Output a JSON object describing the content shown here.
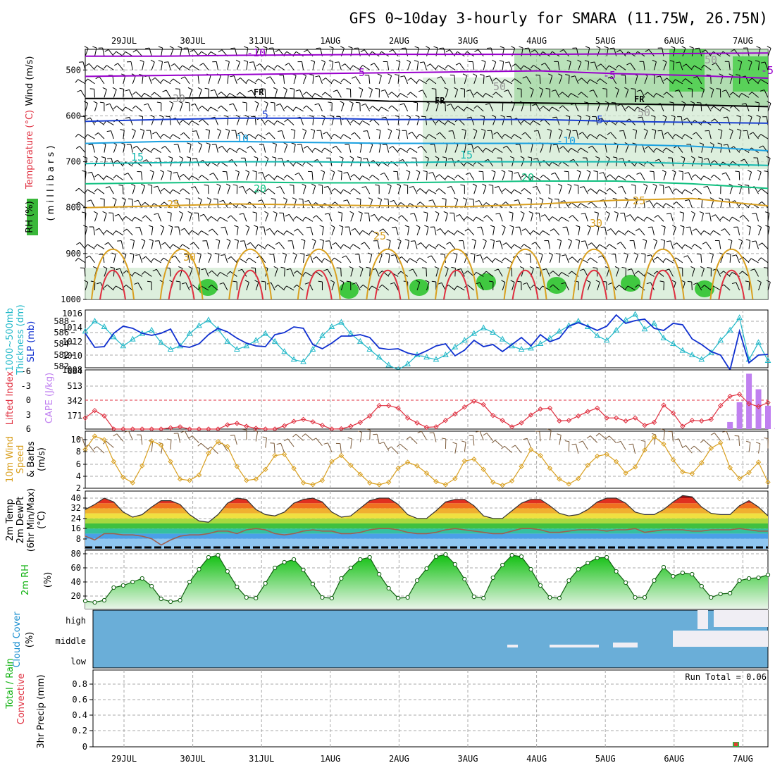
{
  "title": "GFS 0~10day 3-hourly for SMARA (11.75W, 26.75N)",
  "dates": [
    "29JUL",
    "30JUL",
    "31JUL",
    "1AUG",
    "2AUG",
    "3AUG",
    "4AUG",
    "5AUG",
    "6AUG",
    "7AUG"
  ],
  "colors": {
    "purple": "#9900cc",
    "blue": "#1a3fd1",
    "lightblue": "#1aa0e0",
    "teal": "#12b9b0",
    "green": "#10c080",
    "orange": "#d9a020",
    "red": "#e03040",
    "cyan": "#20b8c8",
    "slp": "#1030d0",
    "rh": "#12b212"
  },
  "panels": {
    "upper": {
      "labels": [
        "Wind (m/s)",
        "Temperature (°C)",
        "RH (%)",
        "( m i l l i b a r s )"
      ],
      "ticks": [
        "500",
        "600",
        "700",
        "800",
        "900",
        "1000"
      ],
      "contour_labels": [
        "-10",
        "-5",
        "-5",
        "FR",
        "FR",
        "FR",
        "-5",
        "5",
        "-5",
        "10",
        "-10",
        "15",
        "15",
        "20",
        "20",
        "25",
        "25",
        "25",
        "30",
        "30",
        "50",
        "50",
        "50",
        "30"
      ],
      "lines": [
        {
          "name": "-10",
          "color": "purple",
          "p": [
            470,
            470,
            468,
            467,
            466,
            466,
            466,
            465,
            464,
            463
          ]
        },
        {
          "name": "-5",
          "color": "purple",
          "p": [
            514,
            512,
            510,
            508,
            506,
            504,
            502,
            508,
            512,
            518
          ]
        },
        {
          "name": "FR",
          "color": "black",
          "p": [
            562,
            562,
            560,
            562,
            568,
            570,
            572,
            574,
            576,
            580
          ]
        },
        {
          "name": "5",
          "color": "blue",
          "p": [
            612,
            608,
            605,
            605,
            608,
            608,
            608,
            612,
            614,
            616
          ]
        },
        {
          "name": "10",
          "color": "lightblue",
          "p": [
            660,
            656,
            656,
            658,
            660,
            660,
            660,
            662,
            666,
            676
          ]
        },
        {
          "name": "15",
          "color": "teal",
          "p": [
            704,
            702,
            700,
            700,
            702,
            700,
            700,
            700,
            704,
            708
          ]
        },
        {
          "name": "20",
          "color": "green",
          "p": [
            748,
            746,
            744,
            746,
            746,
            744,
            742,
            742,
            748,
            758
          ]
        },
        {
          "name": "25",
          "color": "orange",
          "p": [
            800,
            796,
            792,
            794,
            796,
            798,
            792,
            784,
            780,
            796
          ]
        }
      ]
    },
    "slp": {
      "labels": [
        "1000~500mb",
        "Thickness (dm)",
        "SLP (mb)"
      ],
      "left_ticks": [
        "588",
        "586",
        "584",
        "582"
      ],
      "right_ticks": [
        "1016",
        "1014",
        "1012",
        "1010",
        "1008"
      ],
      "thickness": [
        587.1,
        588.0,
        587.5,
        586.6,
        585.8,
        586.4,
        586.9,
        587.2,
        586.1,
        585.5,
        585.8,
        586.9,
        587.6,
        588.1,
        587.3,
        586.2,
        585.5,
        585.8,
        586.3,
        586.9,
        586.2,
        585.3,
        584.6,
        584.4,
        585.5,
        586.7,
        587.5,
        587.9,
        586.9,
        586.2,
        585.5,
        584.8,
        584.1,
        583.7,
        584.2,
        585.0,
        584.8,
        584.6,
        585.0,
        585.7,
        586.3,
        586.9,
        587.4,
        587.0,
        586.4,
        585.8,
        585.5,
        585.6,
        586.0,
        586.5,
        587.1,
        587.6,
        588.0,
        587.5,
        586.7,
        586.3,
        587.2,
        588.1,
        588.6,
        587.3,
        587.8,
        586.5,
        586.0,
        585.4,
        585.0,
        584.6,
        585.2,
        586.3,
        587.2,
        588.3,
        584.6,
        586.1,
        584.5
      ],
      "pressure": [
        1012.8,
        1010.8,
        1010.9,
        1012.8,
        1013.8,
        1013.5,
        1012.8,
        1012.5,
        1012.8,
        1013.4,
        1011.0,
        1010.8,
        1011.3,
        1012.6,
        1013.5,
        1013.0,
        1012.1,
        1011.4,
        1011.0,
        1010.9,
        1012.6,
        1012.9,
        1013.7,
        1013.5,
        1011.2,
        1010.6,
        1011.4,
        1012.4,
        1012.4,
        1012.6,
        1012.2,
        1010.7,
        1010.5,
        1010.6,
        1010.0,
        1009.7,
        1010.3,
        1011.0,
        1011.3,
        1009.6,
        1010.4,
        1011.8,
        1010.9,
        1011.2,
        1010.2,
        1011.2,
        1012.2,
        1011.0,
        1012.6,
        1011.6,
        1012.1,
        1013.8,
        1014.3,
        1013.8,
        1013.2,
        1013.8,
        1015.4,
        1014.2,
        1014.6,
        1014.8,
        1013.5,
        1013.2,
        1014.2,
        1014.0,
        1012.0,
        1011.2,
        1010.2,
        1009.7,
        1007.6,
        1013.1,
        1008.6,
        1009.7,
        1009.8
      ]
    },
    "cape": {
      "labels": [
        "Lifted Index",
        "CAPE (J/kg)"
      ],
      "li_ticks": [
        "-6",
        "-3",
        "0",
        "3",
        "6"
      ],
      "cape_ticks": [
        "684",
        "513",
        "342",
        "171"
      ],
      "lifted_index": [
        3.6,
        2.1,
        3.2,
        6.2,
        6.8,
        6.8,
        7.1,
        6.9,
        6.1,
        5.6,
        5.4,
        5.9,
        6.0,
        6.3,
        6.0,
        5.0,
        4.7,
        5.3,
        5.7,
        6.0,
        6.0,
        5.2,
        4.3,
        3.9,
        4.4,
        5.1,
        5.9,
        5.8,
        5.3,
        4.5,
        3.2,
        1.1,
        1.1,
        1.6,
        3.6,
        4.6,
        5.5,
        5.4,
        4.1,
        2.8,
        1.4,
        0.2,
        0.9,
        3.1,
        4.1,
        5.4,
        4.6,
        3.0,
        1.8,
        1.6,
        4.2,
        4.1,
        3.2,
        2.3,
        1.6,
        3.6,
        3.6,
        4.2,
        3.6,
        5.1,
        4.5,
        1.0,
        2.6,
        5.3,
        4.1,
        4.2,
        3.9,
        1.1,
        -0.8,
        -1.2,
        0.7,
        1.3,
        0.5
      ],
      "cape_values": [
        0,
        0,
        0,
        0,
        0,
        0,
        0,
        0,
        0,
        0,
        0,
        0,
        0,
        0,
        0,
        0,
        0,
        0,
        0,
        0,
        0,
        0,
        0,
        0,
        0,
        0,
        0,
        0,
        0,
        0,
        0,
        0,
        0,
        0,
        0,
        0,
        0,
        0,
        0,
        0,
        0,
        0,
        0,
        0,
        0,
        0,
        0,
        0,
        0,
        0,
        0,
        0,
        0,
        0,
        0,
        0,
        0,
        0,
        0,
        0,
        0,
        0,
        0,
        0,
        0,
        0,
        0,
        0,
        82,
        310,
        640,
        460,
        270,
        12,
        0
      ]
    },
    "wind10": {
      "labels": [
        "10m Wind",
        "Speed",
        "& Barbs",
        "(m/s)"
      ],
      "ticks": [
        "10",
        "8",
        "6",
        "4",
        "2"
      ],
      "speed": [
        8.4,
        10.6,
        10.0,
        6.4,
        3.8,
        2.9,
        5.7,
        9.8,
        9.1,
        6.4,
        3.5,
        3.3,
        4.2,
        7.8,
        9.7,
        8.9,
        5.6,
        3.3,
        3.5,
        5.1,
        7.4,
        7.6,
        5.3,
        2.9,
        2.6,
        3.3,
        6.4,
        7.4,
        5.8,
        4.3,
        2.9,
        2.6,
        3.0,
        5.3,
        6.3,
        5.7,
        4.5,
        3.1,
        2.6,
        3.6,
        6.5,
        6.8,
        5.1,
        3.0,
        2.5,
        3.2,
        5.6,
        8.4,
        7.4,
        5.3,
        3.5,
        2.7,
        3.6,
        5.8,
        7.3,
        7.6,
        6.4,
        4.5,
        5.5,
        8.3,
        10.5,
        9.3,
        6.7,
        4.7,
        4.4,
        6.2,
        8.6,
        9.5,
        5.4,
        3.6,
        4.6,
        6.3,
        3.0
      ]
    },
    "temp": {
      "labels": [
        "2m Temp",
        "2m DewPt",
        "(6hr Min/Max)",
        "(°C)"
      ],
      "ticks": [
        "40",
        "32",
        "24",
        "16",
        "8"
      ],
      "temperature": [
        31,
        35,
        40,
        37,
        29,
        25,
        27,
        33,
        38,
        38,
        35,
        27,
        22,
        21,
        27,
        36,
        40,
        39,
        31,
        27,
        26,
        29,
        36,
        39,
        40,
        37,
        29,
        25,
        26,
        32,
        38,
        40,
        40,
        35,
        27,
        24,
        24,
        30,
        37,
        39,
        39,
        34,
        26,
        24,
        24,
        30,
        36,
        39,
        39,
        34,
        28,
        26,
        27,
        31,
        37,
        40,
        40,
        36,
        29,
        27,
        27,
        31,
        37,
        42,
        41,
        33,
        28,
        27,
        27,
        34,
        38,
        33,
        26
      ],
      "dewpoint": [
        10,
        7,
        12,
        12,
        11,
        11,
        10,
        8,
        3,
        7,
        10,
        11,
        11,
        12,
        14,
        14,
        12,
        15,
        16,
        15,
        12,
        11,
        12,
        14,
        15,
        14,
        14,
        12,
        12,
        13,
        15,
        16,
        16,
        15,
        13,
        12,
        12,
        13,
        15,
        16,
        15,
        14,
        13,
        12,
        12,
        14,
        16,
        16,
        15,
        13,
        13,
        14,
        15,
        15,
        15,
        14,
        15,
        15,
        16,
        13,
        14,
        15,
        15,
        15,
        14,
        14,
        15,
        15,
        15,
        16,
        15,
        14,
        14
      ]
    },
    "rh2m": {
      "labels": [
        "2m RH",
        "(%)"
      ],
      "ticks": [
        "80",
        "60",
        "40",
        "20"
      ],
      "rh": [
        13,
        11,
        14,
        32,
        35,
        40,
        45,
        34,
        16,
        12,
        14,
        40,
        58,
        75,
        78,
        55,
        33,
        18,
        17,
        38,
        60,
        68,
        72,
        57,
        37,
        18,
        17,
        45,
        60,
        72,
        75,
        51,
        31,
        17,
        18,
        42,
        59,
        76,
        79,
        65,
        44,
        19,
        17,
        46,
        64,
        78,
        76,
        58,
        35,
        18,
        17,
        42,
        58,
        67,
        74,
        75,
        55,
        39,
        18,
        18,
        42,
        61,
        48,
        53,
        51,
        34,
        18,
        23,
        24,
        42,
        45,
        46,
        50
      ]
    },
    "cloud": {
      "labels": [
        "Cloud Cover",
        "(%)"
      ],
      "ticks": [
        "high",
        "middle",
        "low"
      ]
    },
    "precip": {
      "labels": [
        "Total / Rain",
        "Convective",
        "3hr Precip (mm)"
      ],
      "ticks": [
        "0.8",
        "0.6",
        "0.4",
        "0.2",
        "0"
      ],
      "run_total": "Run Total = 0.06",
      "bars": [
        {
          "index": 67,
          "total": 0.06,
          "convective": 0.06
        }
      ]
    }
  },
  "chart_data": {
    "type": "line",
    "title": "GFS 0~10day 3-hourly for SMARA (11.75W, 26.75N)",
    "x": [
      "29JUL",
      "30JUL",
      "31JUL",
      "1AUG",
      "2AUG",
      "3AUG",
      "4AUG",
      "5AUG",
      "6AUG",
      "7AUG"
    ],
    "series": [
      {
        "name": "SLP (mb)",
        "unit": "mb"
      },
      {
        "name": "1000~500mb Thickness (dm)",
        "unit": "dm"
      },
      {
        "name": "Lifted Index",
        "unit": ""
      },
      {
        "name": "CAPE (J/kg)",
        "unit": "J/kg"
      },
      {
        "name": "10m Wind Speed",
        "unit": "m/s"
      },
      {
        "name": "2m Temp",
        "unit": "°C"
      },
      {
        "name": "2m DewPt",
        "unit": "°C"
      },
      {
        "name": "2m RH",
        "unit": "%"
      },
      {
        "name": "3hr Precip",
        "unit": "mm"
      }
    ],
    "ylim": {
      "slp": [
        1007,
        1016
      ],
      "thickness": [
        582,
        589
      ],
      "lifted_index": [
        6,
        -6
      ],
      "cape": [
        0,
        684
      ],
      "wind": [
        2,
        11
      ],
      "temp": [
        0,
        42
      ],
      "rh": [
        0,
        85
      ],
      "precip": [
        0,
        1
      ],
      "pressure": [
        440,
        1000
      ]
    },
    "grid": true,
    "run_total": "Run Total = 0.06"
  }
}
